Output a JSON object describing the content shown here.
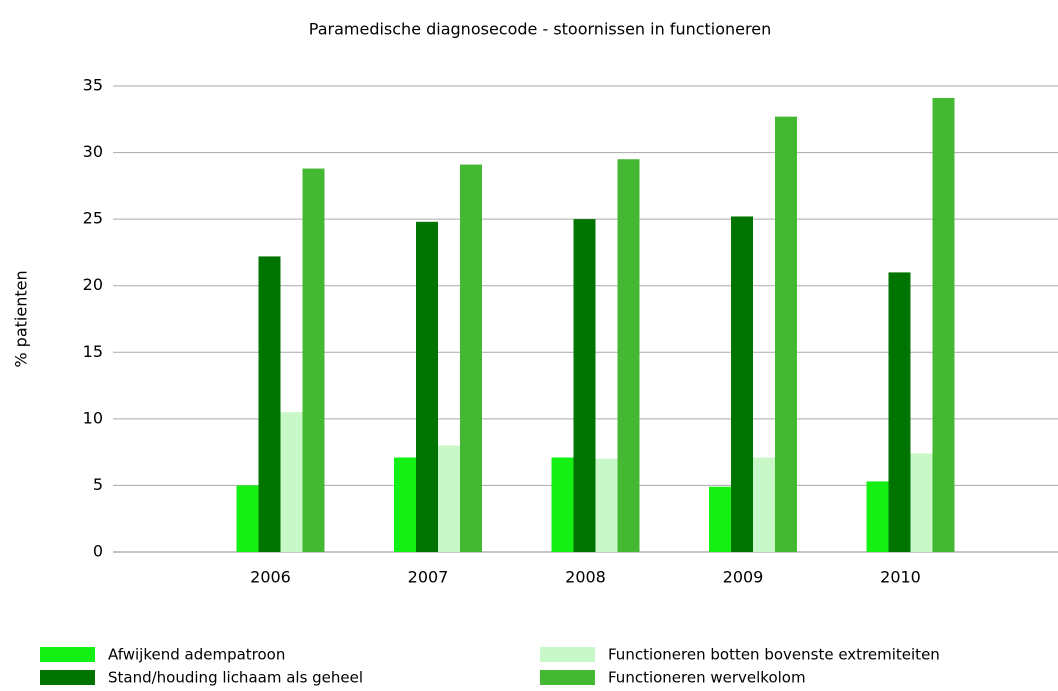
{
  "chart_data": {
    "type": "bar",
    "title": "Paramedische diagnosecode - stoornissen in functioneren",
    "y_label": "% patienten",
    "categories": [
      "2006",
      "2007",
      "2008",
      "2009",
      "2010"
    ],
    "series": [
      {
        "name": "Afwijkend adempatroon",
        "color": "#14f014",
        "values": [
          5.0,
          7.1,
          7.1,
          4.9,
          5.3
        ]
      },
      {
        "name": "Stand/houding lichaam als geheel",
        "color": "#007400",
        "values": [
          22.2,
          24.8,
          25.0,
          25.2,
          21.0
        ]
      },
      {
        "name": "Functioneren botten bovenste extremiteiten",
        "color": "#c8f8c8",
        "values": [
          10.5,
          8.0,
          7.0,
          7.1,
          7.4
        ]
      },
      {
        "name": "Functioneren wervelkolom",
        "color": "#44b833",
        "values": [
          28.8,
          29.1,
          29.5,
          32.7,
          34.1
        ]
      }
    ],
    "ylim": [
      0,
      35
    ],
    "yticks": [
      0,
      5,
      10,
      15,
      20,
      25,
      30,
      35
    ],
    "grid": true
  }
}
